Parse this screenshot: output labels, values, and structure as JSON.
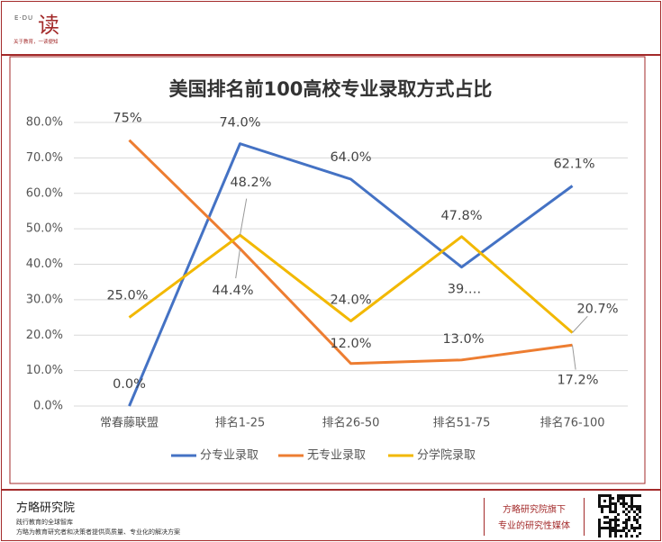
{
  "header": {
    "logo_small": "E·DU",
    "logo": "读",
    "slogan": "关于教育，一读便知"
  },
  "chart_data": {
    "type": "line",
    "title": "美国排名前100高校专业录取方式占比",
    "categories": [
      "常春藤联盟",
      "排名1-25",
      "排名26-50",
      "排名51-75",
      "排名76-100"
    ],
    "series": [
      {
        "name": "分专业录取",
        "color": "#4472c4",
        "values": [
          0.0,
          74.0,
          64.0,
          39.2,
          62.1
        ],
        "value_labels": [
          "0.0%",
          "74.0%",
          "64.0%",
          "39.…",
          "62.1%"
        ]
      },
      {
        "name": "无专业录取",
        "color": "#ed7d31",
        "values": [
          75,
          44.4,
          12.0,
          13.0,
          17.2
        ],
        "value_labels": [
          "75%",
          "44.4%",
          "12.0%",
          "13.0%",
          "17.2%"
        ]
      },
      {
        "name": "分学院录取",
        "color": "#f2b800",
        "values": [
          25.0,
          48.2,
          24.0,
          47.8,
          20.7
        ],
        "value_labels": [
          "25.0%",
          "48.2%",
          "24.0%",
          "47.8%",
          "20.7%"
        ]
      }
    ],
    "ylim": [
      0,
      80
    ],
    "yticks": [
      {
        "value": 0,
        "label": "0.0%"
      },
      {
        "value": 10,
        "label": "10.0%"
      },
      {
        "value": 20,
        "label": "20.0%"
      },
      {
        "value": 30,
        "label": "30.0%"
      },
      {
        "value": 40,
        "label": "40.0%"
      },
      {
        "value": 50,
        "label": "50.0%"
      },
      {
        "value": 60,
        "label": "60.0%"
      },
      {
        "value": 70,
        "label": "70.0%"
      },
      {
        "value": 80,
        "label": "80.0%"
      }
    ],
    "grid": true,
    "legend": "bottom"
  },
  "footer": {
    "name": "方略研究院",
    "line1": "践行教育的全球智库",
    "line2": "方略为教育研究者和决策者提供高质量、专业化的解决方案",
    "right1": "方略研究院旗下",
    "right2": "专业的研究性媒体"
  }
}
